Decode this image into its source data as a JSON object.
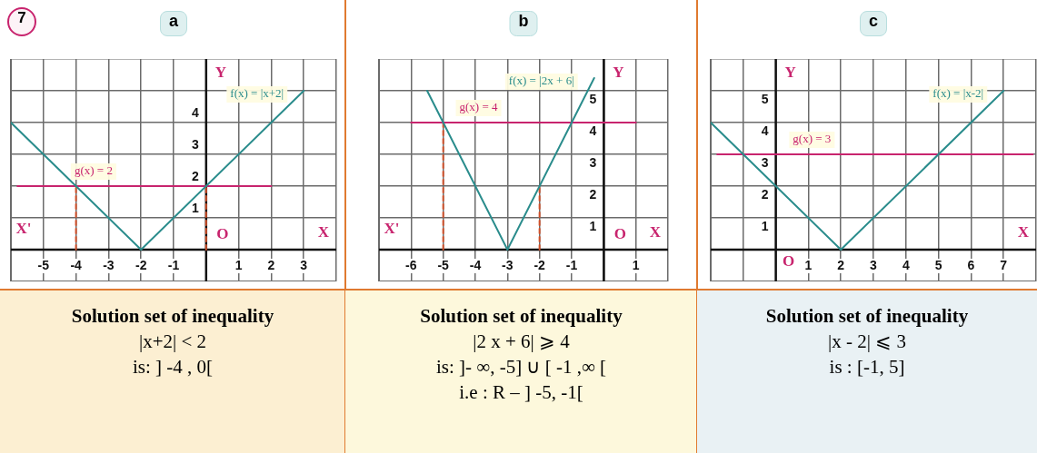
{
  "chart_data": [
    {
      "type": "line",
      "title": "a",
      "subtitle": "7",
      "xlabel": "X",
      "ylabel": "Y",
      "grid": true,
      "marker": "none",
      "legend": false,
      "xlim": [
        -6,
        4
      ],
      "ylim": [
        -1,
        6
      ],
      "xticks": [
        {
          "value": -6,
          "label": null
        },
        -5,
        -4,
        -3,
        -2,
        -1,
        {
          "value": 0,
          "label": null
        },
        1,
        2,
        3,
        {
          "value": 4,
          "label": null
        }
      ],
      "yticks": [
        {
          "value": -1,
          "label": null
        },
        {
          "value": 0,
          "label": null
        },
        1,
        2,
        3,
        4,
        {
          "value": 5,
          "label": null
        },
        {
          "value": 6,
          "label": null
        }
      ],
      "series": [
        {
          "name": "f(x) = |x+2|",
          "color": "#2a8c8c",
          "x": [
            -6,
            -2,
            3
          ],
          "values": [
            4,
            0,
            5
          ]
        },
        {
          "name": "g(x) = 2",
          "color": "#c8246e",
          "x": [
            -5.8,
            2
          ],
          "values": [
            2,
            2
          ]
        },
        {
          "color": "#d0502a",
          "line_style": "dashed",
          "x": [
            -4,
            -4
          ],
          "values": [
            0,
            2
          ]
        },
        {
          "color": "#d0502a",
          "line_style": "dashed",
          "x": [
            0,
            0
          ],
          "values": [
            0,
            2
          ]
        }
      ],
      "annotations": [
        "X'",
        "O",
        "Solution set of inequality",
        "|x+2| < 2",
        "is: ] -4 , 0["
      ]
    },
    {
      "type": "line",
      "title": "b",
      "xlabel": "X",
      "ylabel": "Y",
      "grid": true,
      "marker": "none",
      "legend": false,
      "xlim": [
        -7,
        2
      ],
      "ylim": [
        -1,
        6
      ],
      "xticks": [
        {
          "value": -7,
          "label": null
        },
        -6,
        -5,
        -4,
        -3,
        -2,
        -1,
        {
          "value": 0,
          "label": null
        },
        1,
        {
          "value": 2,
          "label": null
        }
      ],
      "yticks": [
        {
          "value": -1,
          "label": null
        },
        {
          "value": 0,
          "label": null
        },
        1,
        2,
        3,
        4,
        5,
        {
          "value": 6,
          "label": null
        }
      ],
      "series": [
        {
          "name": "f(x) = |2x + 6|",
          "color": "#2a8c8c",
          "x": [
            -5.5,
            -3,
            -0.3
          ],
          "values": [
            5,
            0,
            5.4
          ]
        },
        {
          "name": "g(x) = 4",
          "color": "#c8246e",
          "x": [
            -6,
            1
          ],
          "values": [
            4,
            4
          ]
        },
        {
          "color": "#d0502a",
          "line_style": "dashed",
          "x": [
            -5,
            -5
          ],
          "values": [
            0,
            4
          ]
        },
        {
          "color": "#d0502a",
          "line_style": "dashed",
          "x": [
            -2,
            -2
          ],
          "values": [
            0,
            2
          ]
        }
      ],
      "annotations": [
        "X'",
        "O",
        "Solution set of inequality",
        "|2 x + 6| ⩾ 4",
        "is: ]- ∞, -5] ∪ [ -1 ,∞ [",
        "i.e : R – ] -5, -1["
      ]
    },
    {
      "type": "line",
      "title": "c",
      "xlabel": "X",
      "ylabel": "Y",
      "grid": true,
      "marker": "none",
      "legend": false,
      "xlim": [
        -2,
        8
      ],
      "ylim": [
        -1,
        6
      ],
      "xticks": [
        {
          "value": -2,
          "label": null
        },
        {
          "value": -1,
          "label": null
        },
        {
          "value": 0,
          "label": null
        },
        1,
        2,
        3,
        4,
        5,
        6,
        7,
        {
          "value": 8,
          "label": null
        }
      ],
      "yticks": [
        {
          "value": -1,
          "label": null
        },
        {
          "value": 0,
          "label": null
        },
        1,
        2,
        3,
        4,
        5,
        {
          "value": 6,
          "label": null
        }
      ],
      "series": [
        {
          "name": "f(x) = |x-2|",
          "color": "#2a8c8c",
          "x": [
            -2,
            2,
            7
          ],
          "values": [
            4,
            0,
            5
          ]
        },
        {
          "name": "g(x) = 3",
          "color": "#c8246e",
          "x": [
            -1.8,
            7.9
          ],
          "values": [
            3,
            3
          ]
        }
      ],
      "annotations": [
        "O",
        "Solution set of inequality",
        "|x - 2| ⩽ 3",
        "is : [-1, 5]"
      ]
    }
  ]
}
